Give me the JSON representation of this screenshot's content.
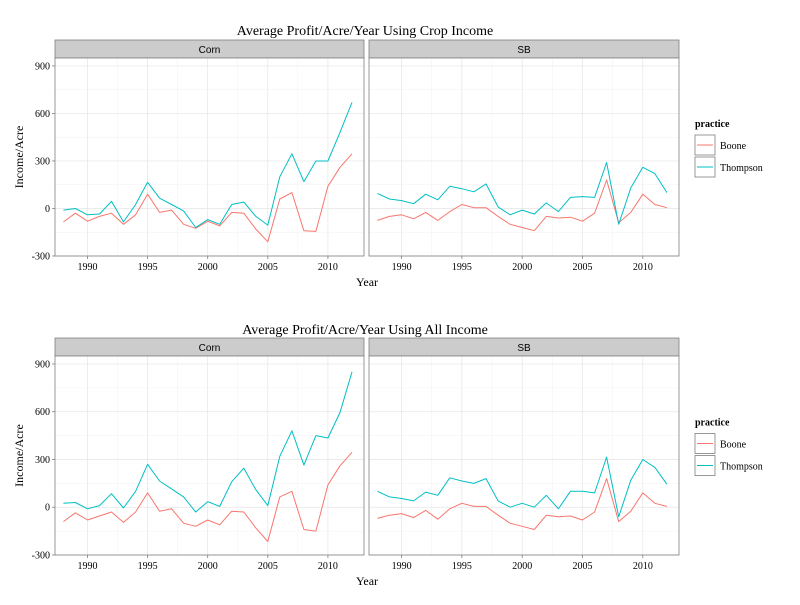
{
  "chart_data": [
    {
      "type": "line",
      "title": "Average Profit/Acre/Year Using Crop Income",
      "xlabel": "Year",
      "ylabel": "Income/Acre",
      "facet_labels": [
        "Corn",
        "SB"
      ],
      "xlim": [
        1987.3,
        2013
      ],
      "ylim": [
        -300,
        950
      ],
      "x_ticks": [
        1990,
        1995,
        2000,
        2005,
        2010
      ],
      "y_ticks": [
        -300,
        0,
        300,
        600,
        900
      ],
      "grid": true,
      "legend": {
        "title": "practice",
        "placement": "right",
        "entries": [
          "Boone",
          "Thompson"
        ]
      },
      "series_colors": [
        "#F8766D",
        "#00BFC4"
      ],
      "x": [
        1988,
        1989,
        1990,
        1991,
        1992,
        1993,
        1994,
        1995,
        1996,
        1997,
        1998,
        1999,
        2000,
        2001,
        2002,
        2003,
        2004,
        2005,
        2006,
        2007,
        2008,
        2009,
        2010,
        2011,
        2012
      ],
      "panels": [
        {
          "facet": "Corn",
          "series": [
            {
              "name": "Boone",
              "values": [
                -85,
                -30,
                -80,
                -50,
                -30,
                -100,
                -40,
                90,
                -25,
                -10,
                -100,
                -125,
                -80,
                -110,
                -25,
                -30,
                -130,
                -210,
                60,
                100,
                -140,
                -145,
                140,
                260,
                345
              ]
            },
            {
              "name": "Thompson",
              "values": [
                -10,
                0,
                -40,
                -35,
                45,
                -85,
                25,
                165,
                65,
                25,
                -15,
                -120,
                -70,
                -100,
                25,
                40,
                -50,
                -105,
                200,
                345,
                170,
                300,
                300,
                480,
                670
              ]
            }
          ]
        },
        {
          "facet": "SB",
          "series": [
            {
              "name": "Boone",
              "values": [
                -75,
                -50,
                -40,
                -65,
                -25,
                -75,
                -20,
                25,
                5,
                5,
                -50,
                -100,
                -120,
                -140,
                -50,
                -60,
                -55,
                -80,
                -30,
                180,
                -90,
                -25,
                90,
                25,
                5
              ]
            },
            {
              "name": "Thompson",
              "values": [
                95,
                60,
                50,
                30,
                90,
                55,
                140,
                125,
                105,
                155,
                10,
                -40,
                -10,
                -35,
                35,
                -20,
                70,
                75,
                70,
                290,
                -100,
                130,
                260,
                220,
                100
              ]
            }
          ]
        }
      ]
    },
    {
      "type": "line",
      "title": "Average Profit/Acre/Year Using All Income",
      "xlabel": "Year",
      "ylabel": "Income/Acre",
      "facet_labels": [
        "Corn",
        "SB"
      ],
      "xlim": [
        1987.3,
        2013
      ],
      "ylim": [
        -300,
        950
      ],
      "x_ticks": [
        1990,
        1995,
        2000,
        2005,
        2010
      ],
      "y_ticks": [
        -300,
        0,
        300,
        600,
        900
      ],
      "grid": true,
      "legend": {
        "title": "practice",
        "placement": "right",
        "entries": [
          "Boone",
          "Thompson"
        ]
      },
      "series_colors": [
        "#F8766D",
        "#00BFC4"
      ],
      "x": [
        1988,
        1989,
        1990,
        1991,
        1992,
        1993,
        1994,
        1995,
        1996,
        1997,
        1998,
        1999,
        2000,
        2001,
        2002,
        2003,
        2004,
        2005,
        2006,
        2007,
        2008,
        2009,
        2010,
        2011,
        2012
      ],
      "panels": [
        {
          "facet": "Corn",
          "series": [
            {
              "name": "Boone",
              "values": [
                -90,
                -35,
                -80,
                -55,
                -30,
                -95,
                -30,
                90,
                -25,
                -10,
                -100,
                -120,
                -80,
                -110,
                -25,
                -30,
                -130,
                -215,
                65,
                100,
                -140,
                -150,
                140,
                260,
                345
              ]
            },
            {
              "name": "Thompson",
              "values": [
                25,
                30,
                -10,
                10,
                85,
                -5,
                100,
                270,
                165,
                115,
                65,
                -30,
                35,
                5,
                160,
                245,
                110,
                10,
                320,
                480,
                265,
                450,
                435,
                595,
                850
              ]
            }
          ]
        },
        {
          "facet": "SB",
          "series": [
            {
              "name": "Boone",
              "values": [
                -70,
                -50,
                -40,
                -65,
                -20,
                -75,
                -10,
                25,
                5,
                5,
                -50,
                -100,
                -120,
                -140,
                -50,
                -60,
                -55,
                -80,
                -30,
                180,
                -90,
                -25,
                90,
                25,
                5
              ]
            },
            {
              "name": "Thompson",
              "values": [
                100,
                65,
                55,
                40,
                95,
                75,
                185,
                165,
                150,
                180,
                40,
                0,
                25,
                0,
                75,
                -10,
                100,
                100,
                90,
                315,
                -60,
                170,
                300,
                250,
                145
              ]
            }
          ]
        }
      ]
    }
  ]
}
